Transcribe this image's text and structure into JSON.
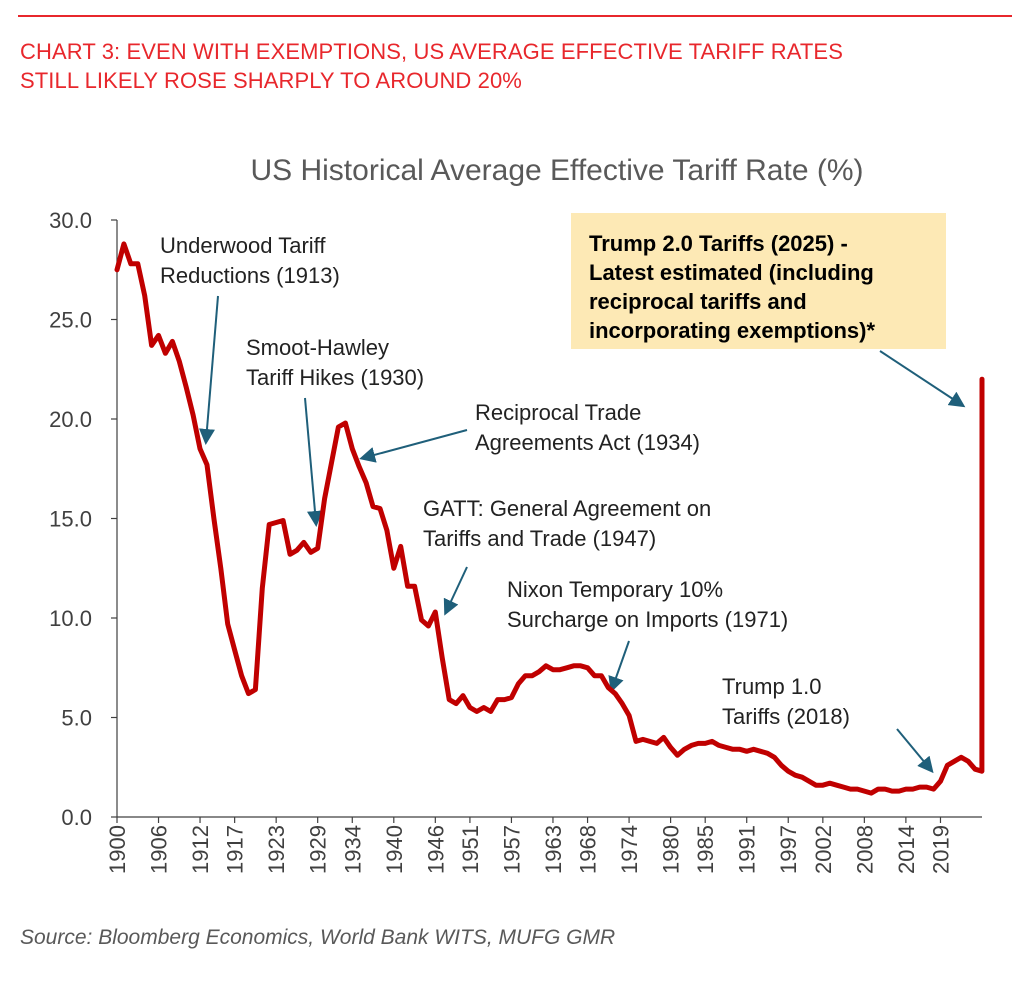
{
  "header": {
    "title_line1": "CHART 3: EVEN WITH EXEMPTIONS, US AVERAGE EFFECTIVE TARIFF RATES",
    "title_line2": "STILL LIKELY ROSE SHARPLY TO AROUND 20%"
  },
  "source": "Source: Bloomberg Economics, World Bank WITS, MUFG GMR",
  "colors": {
    "accent": "#e8272c",
    "series": "#c00000",
    "arrow": "#1f5f7a",
    "callout_bg": "#fde9b5"
  },
  "chart_data": {
    "type": "line",
    "title": "US Historical Average Effective Tariff Rate (%)",
    "xlabel": "",
    "ylabel": "",
    "xlim": [
      1900,
      2025
    ],
    "ylim": [
      0,
      30
    ],
    "yticks": [
      "0.0",
      "5.0",
      "10.0",
      "15.0",
      "20.0",
      "25.0",
      "30.0"
    ],
    "xticks": [
      "1900",
      "1906",
      "1912",
      "1917",
      "1923",
      "1929",
      "1934",
      "1940",
      "1946",
      "1951",
      "1957",
      "1963",
      "1968",
      "1974",
      "1980",
      "1985",
      "1991",
      "1997",
      "2002",
      "2008",
      "2014",
      "2019"
    ],
    "grid": false,
    "series": [
      {
        "name": "",
        "x": [
          1900,
          1901,
          1902,
          1903,
          1904,
          1905,
          1906,
          1907,
          1908,
          1909,
          1910,
          1911,
          1912,
          1913,
          1914,
          1915,
          1916,
          1917,
          1918,
          1919,
          1920,
          1921,
          1922,
          1923,
          1924,
          1925,
          1926,
          1927,
          1928,
          1929,
          1930,
          1931,
          1932,
          1933,
          1934,
          1935,
          1936,
          1937,
          1938,
          1939,
          1940,
          1941,
          1942,
          1943,
          1944,
          1945,
          1946,
          1947,
          1948,
          1949,
          1950,
          1951,
          1952,
          1953,
          1954,
          1955,
          1956,
          1957,
          1958,
          1959,
          1960,
          1961,
          1962,
          1963,
          1964,
          1965,
          1966,
          1967,
          1968,
          1969,
          1970,
          1971,
          1972,
          1973,
          1974,
          1975,
          1976,
          1977,
          1978,
          1979,
          1980,
          1981,
          1982,
          1983,
          1984,
          1985,
          1986,
          1987,
          1988,
          1989,
          1990,
          1991,
          1992,
          1993,
          1994,
          1995,
          1996,
          1997,
          1998,
          1999,
          2000,
          2001,
          2002,
          2003,
          2004,
          2005,
          2006,
          2007,
          2008,
          2009,
          2010,
          2011,
          2012,
          2013,
          2014,
          2015,
          2016,
          2017,
          2018,
          2019,
          2020,
          2021,
          2022,
          2023,
          2024,
          2024.99,
          2025
        ],
        "y": [
          27.5,
          28.8,
          27.8,
          27.8,
          26.2,
          23.7,
          24.2,
          23.3,
          23.9,
          22.9,
          21.6,
          20.2,
          18.5,
          17.7,
          15.0,
          12.5,
          9.7,
          8.4,
          7.1,
          6.2,
          6.4,
          11.5,
          14.7,
          14.8,
          14.9,
          13.2,
          13.4,
          13.8,
          13.3,
          13.5,
          16.0,
          17.8,
          19.6,
          19.8,
          18.5,
          17.6,
          16.8,
          15.6,
          15.5,
          14.4,
          12.5,
          13.6,
          11.6,
          11.6,
          9.9,
          9.6,
          10.3,
          8.0,
          5.9,
          5.7,
          6.1,
          5.5,
          5.3,
          5.5,
          5.3,
          5.9,
          5.9,
          6.0,
          6.7,
          7.1,
          7.1,
          7.3,
          7.6,
          7.4,
          7.4,
          7.5,
          7.6,
          7.6,
          7.5,
          7.1,
          7.1,
          6.5,
          6.2,
          5.7,
          5.1,
          3.8,
          3.9,
          3.8,
          3.7,
          4.0,
          3.5,
          3.1,
          3.4,
          3.6,
          3.7,
          3.7,
          3.8,
          3.6,
          3.5,
          3.4,
          3.4,
          3.3,
          3.4,
          3.3,
          3.2,
          3.0,
          2.6,
          2.3,
          2.1,
          2.0,
          1.8,
          1.6,
          1.6,
          1.7,
          1.6,
          1.5,
          1.4,
          1.4,
          1.3,
          1.2,
          1.4,
          1.4,
          1.3,
          1.3,
          1.4,
          1.4,
          1.5,
          1.5,
          1.4,
          1.8,
          2.6,
          2.8,
          3.0,
          2.8,
          2.4,
          2.3,
          22.0
        ]
      }
    ],
    "annotations": [
      {
        "id": "underwood",
        "lines": [
          "Underwood Tariff",
          "Reductions (1913)"
        ],
        "bold": false
      },
      {
        "id": "smoot",
        "lines": [
          "Smoot-Hawley",
          "Tariff Hikes (1930)"
        ],
        "bold": false
      },
      {
        "id": "rtaa",
        "lines": [
          "Reciprocal Trade",
          "Agreements Act (1934)"
        ],
        "bold": false
      },
      {
        "id": "gatt",
        "lines": [
          "GATT: General Agreement on",
          "Tariffs and Trade (1947)"
        ],
        "bold": false
      },
      {
        "id": "nixon",
        "lines": [
          "Nixon Temporary 10%",
          "Surcharge on Imports (1971)"
        ],
        "bold": false
      },
      {
        "id": "trump1",
        "lines": [
          "Trump 1.0",
          "Tariffs (2018)"
        ],
        "bold": false
      },
      {
        "id": "trump2",
        "lines": [
          "Trump 2.0 Tariffs (2025) -",
          "Latest estimated (including",
          "reciprocal tariffs and",
          "incorporating exemptions)*"
        ],
        "bold": true
      }
    ]
  }
}
